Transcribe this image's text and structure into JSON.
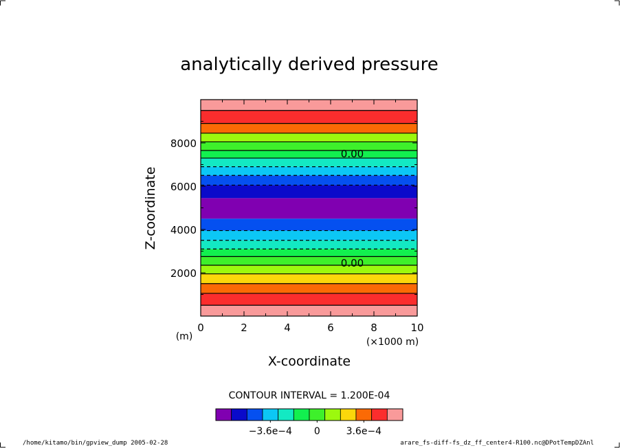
{
  "chart_data": {
    "type": "heatmap",
    "title": "analytically derived pressure",
    "xlabel": "X-coordinate",
    "ylabel": "Z-coordinate",
    "x_unit": "(×1000 m)",
    "y_unit": "(m)",
    "xlim": [
      0,
      10
    ],
    "ylim": [
      0,
      10000
    ],
    "xticks": [
      "0",
      "2",
      "4",
      "6",
      "8",
      "10"
    ],
    "yticks": [
      "2000",
      "4000",
      "6000",
      "8000"
    ],
    "contour_interval_text": "CONTOUR INTERVAL = 1.200E-04",
    "contour_label": "0.00",
    "contour_label_heights": [
      7500,
      2450
    ],
    "bands": [
      {
        "z0": 0,
        "z1": 500,
        "color": "#f99a9a"
      },
      {
        "z0": 500,
        "z1": 1050,
        "color": "#fb2d2d"
      },
      {
        "z0": 1050,
        "z1": 1500,
        "color": "#fb6a05"
      },
      {
        "z0": 1500,
        "z1": 1950,
        "color": "#fbd70b"
      },
      {
        "z0": 1950,
        "z1": 2350,
        "color": "#9cf90e"
      },
      {
        "z0": 2350,
        "z1": 2750,
        "color": "#3ef02b"
      },
      {
        "z0": 2750,
        "z1": 3100,
        "color": "#12f04f"
      },
      {
        "z0": 3100,
        "z1": 3500,
        "color": "#13e9c3"
      },
      {
        "z0": 3500,
        "z1": 3950,
        "color": "#0cc7f5"
      },
      {
        "z0": 3950,
        "z1": 4500,
        "color": "#0550f0"
      },
      {
        "z0": 4500,
        "z1": 5450,
        "color": "#8000b1"
      },
      {
        "z0": 5450,
        "z1": 6050,
        "color": "#0a0aca"
      },
      {
        "z0": 6050,
        "z1": 6500,
        "color": "#0550f0"
      },
      {
        "z0": 6500,
        "z1": 6900,
        "color": "#0cc7f5"
      },
      {
        "z0": 6900,
        "z1": 7300,
        "color": "#13e9c3"
      },
      {
        "z0": 7300,
        "z1": 7650,
        "color": "#12f04f"
      },
      {
        "z0": 7650,
        "z1": 8050,
        "color": "#3ef02b"
      },
      {
        "z0": 8050,
        "z1": 8450,
        "color": "#9cf90e"
      },
      {
        "z0": 8450,
        "z1": 8900,
        "color": "#fb6a05"
      },
      {
        "z0": 8900,
        "z1": 9500,
        "color": "#fb2d2d"
      },
      {
        "z0": 9500,
        "z1": 10000,
        "color": "#f99a9a"
      }
    ],
    "contours": [
      {
        "z": 500,
        "style": "solid"
      },
      {
        "z": 1050,
        "style": "solid"
      },
      {
        "z": 1500,
        "style": "solid"
      },
      {
        "z": 1950,
        "style": "solid"
      },
      {
        "z": 2350,
        "style": "solid"
      },
      {
        "z": 2750,
        "style": "solid"
      },
      {
        "z": 3100,
        "style": "dashed"
      },
      {
        "z": 3500,
        "style": "dashed"
      },
      {
        "z": 3950,
        "style": "dashed"
      },
      {
        "z": 6050,
        "style": "dashed"
      },
      {
        "z": 6500,
        "style": "dashed"
      },
      {
        "z": 6900,
        "style": "dashed"
      },
      {
        "z": 7300,
        "style": "solid"
      },
      {
        "z": 7650,
        "style": "solid"
      },
      {
        "z": 8050,
        "style": "solid"
      },
      {
        "z": 8450,
        "style": "solid"
      },
      {
        "z": 8900,
        "style": "solid"
      },
      {
        "z": 9500,
        "style": "solid"
      }
    ],
    "colorbar": {
      "colors": [
        "#8000b1",
        "#0a0aca",
        "#0550f0",
        "#0cc7f5",
        "#13e9c3",
        "#12f04f",
        "#3ef02b",
        "#9cf90e",
        "#fbd70b",
        "#fb6a05",
        "#fb2d2d",
        "#f99a9a"
      ],
      "labels": [
        {
          "text": "−3.6e−4",
          "index": 3
        },
        {
          "text": "0",
          "index": 6
        },
        {
          "text": "3.6e−4",
          "index": 9
        }
      ]
    }
  },
  "footer": {
    "left": "/home/kitamo/bin/gpview_dump  2005-02-28",
    "right": "arare_fs-diff-fs_dz_ff_center4-R100.nc@DPotTempDZAnl"
  }
}
